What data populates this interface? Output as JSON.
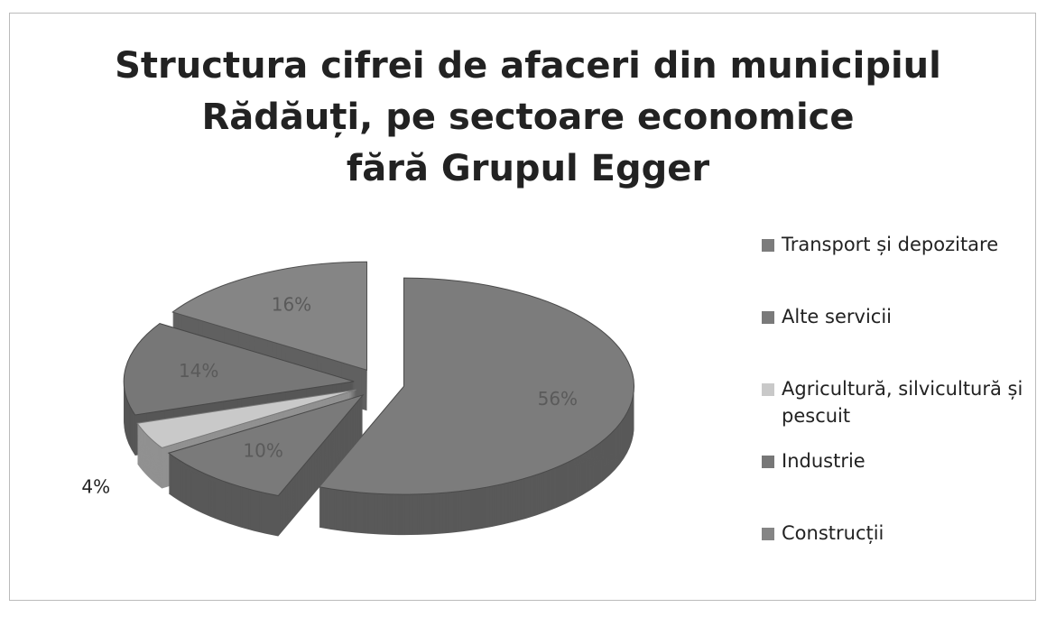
{
  "chart_data": {
    "type": "pie3d",
    "title": [
      "Structura cifrei de afaceri din municipiul",
      "Rădăuți, pe sectoare economice",
      "fără Grupul Egger"
    ],
    "categories": [
      "Transport și depozitare",
      "Alte servicii",
      "Agricultură, silvicultură și pescuit",
      "Industrie",
      "Construcții"
    ],
    "values": [
      56,
      10,
      4,
      14,
      16
    ],
    "value_labels": [
      "56%",
      "10%",
      "4%",
      "14%",
      "16%"
    ],
    "colors": [
      "#7c7c7c",
      "#7a7a7a",
      "#c9c9c9",
      "#777777",
      "#858585"
    ],
    "legend": "right"
  }
}
